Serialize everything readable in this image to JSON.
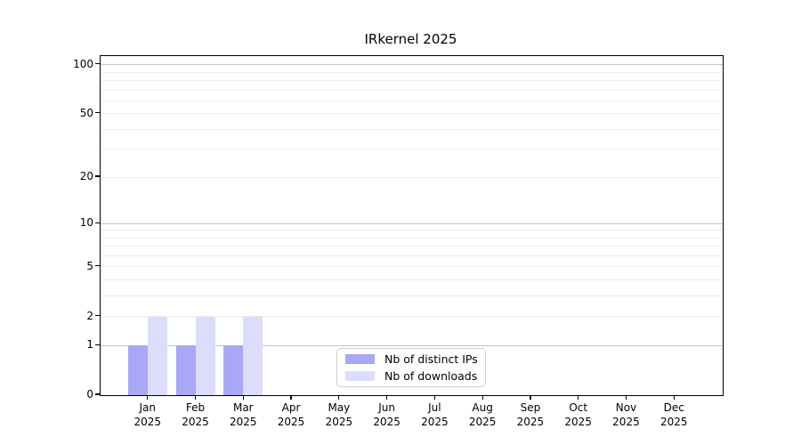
{
  "title": "IRkernel 2025",
  "colors": {
    "distinct_ips": "#a8a8f6",
    "downloads": "#dcdcfb",
    "grid_major": "#c3c3c3",
    "grid_minor": "#ececec",
    "axis": "#000000",
    "legend_border": "#d0d0d0",
    "background": "#ffffff"
  },
  "chart_data": {
    "type": "bar",
    "title": "IRkernel 2025",
    "categories": [
      "Jan 2025",
      "Feb 2025",
      "Mar 2025",
      "Apr 2025",
      "May 2025",
      "Jun 2025",
      "Jul 2025",
      "Aug 2025",
      "Sep 2025",
      "Oct 2025",
      "Nov 2025",
      "Dec 2025"
    ],
    "series": [
      {
        "name": "Nb of distinct IPs",
        "color": "#a8a8f6",
        "values": [
          1,
          1,
          1,
          0,
          0,
          0,
          0,
          0,
          0,
          0,
          0,
          0
        ]
      },
      {
        "name": "Nb of downloads",
        "color": "#dcdcfb",
        "values": [
          2,
          2,
          2,
          0,
          0,
          0,
          0,
          0,
          0,
          0,
          0,
          0
        ]
      }
    ],
    "xlabel": "",
    "ylabel": "",
    "yscale": "log1p",
    "ylim": [
      0,
      113
    ],
    "ytick_labels": [
      0,
      1,
      2,
      5,
      10,
      20,
      50,
      100
    ],
    "grid_major": [
      1,
      10,
      100
    ],
    "grid_minor": [
      2,
      3,
      4,
      5,
      6,
      7,
      8,
      9,
      20,
      30,
      40,
      50,
      60,
      70,
      80,
      90
    ],
    "grid": "horizontal",
    "legend_position": "lower center"
  }
}
